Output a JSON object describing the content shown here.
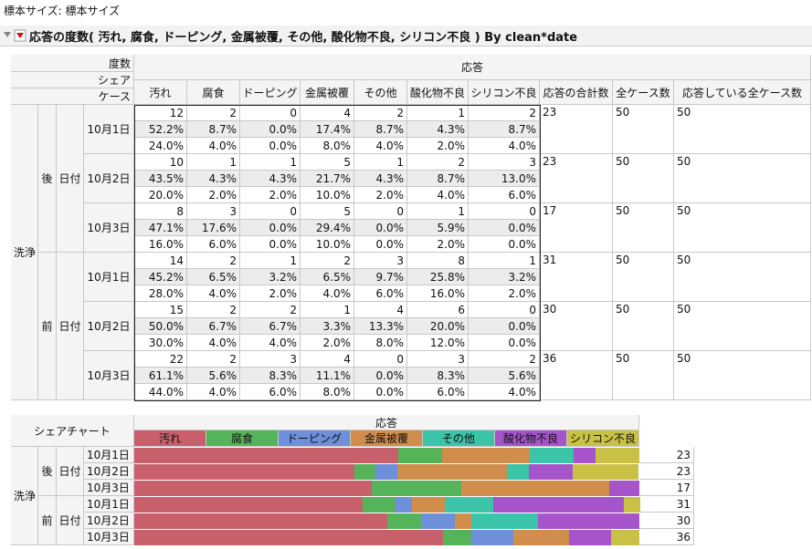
{
  "sample_size": "標本サイズ: 標本サイズ",
  "title": "応答の度数( 汚れ, 腐食, ドーピング, 金属被覆, その他, 酸化物不良, シリコン不良 ) By clean*date",
  "table": {
    "row_header_labels": [
      "度数",
      "シェア",
      "ケース"
    ],
    "response_label": "応答",
    "columns": [
      "汚れ",
      "腐食",
      "ドーピング",
      "金属被覆",
      "その他",
      "酸化物不良",
      "シリコン不良"
    ],
    "summary_columns": [
      "応答の合計数",
      "全ケース数",
      "応答している全ケース数"
    ],
    "group_label": "洗浄",
    "date_label": "日付",
    "groups": [
      {
        "name": "後",
        "rows": [
          {
            "date": "10月1日",
            "counts": [
              12,
              2,
              0,
              4,
              2,
              1,
              2
            ],
            "shares": [
              "52.2%",
              "8.7%",
              "0.0%",
              "17.4%",
              "8.7%",
              "4.3%",
              "8.7%"
            ],
            "cases": [
              "24.0%",
              "4.0%",
              "0.0%",
              "8.0%",
              "4.0%",
              "2.0%",
              "4.0%"
            ],
            "summary": [
              23,
              50,
              50
            ]
          },
          {
            "date": "10月2日",
            "counts": [
              10,
              1,
              1,
              5,
              1,
              2,
              3
            ],
            "shares": [
              "43.5%",
              "4.3%",
              "4.3%",
              "21.7%",
              "4.3%",
              "8.7%",
              "13.0%"
            ],
            "cases": [
              "20.0%",
              "2.0%",
              "2.0%",
              "10.0%",
              "2.0%",
              "4.0%",
              "6.0%"
            ],
            "summary": [
              23,
              50,
              50
            ]
          },
          {
            "date": "10月3日",
            "counts": [
              8,
              3,
              0,
              5,
              0,
              1,
              0
            ],
            "shares": [
              "47.1%",
              "17.6%",
              "0.0%",
              "29.4%",
              "0.0%",
              "5.9%",
              "0.0%"
            ],
            "cases": [
              "16.0%",
              "6.0%",
              "0.0%",
              "10.0%",
              "0.0%",
              "2.0%",
              "0.0%"
            ],
            "summary": [
              17,
              50,
              50
            ]
          }
        ]
      },
      {
        "name": "前",
        "rows": [
          {
            "date": "10月1日",
            "counts": [
              14,
              2,
              1,
              2,
              3,
              8,
              1
            ],
            "shares": [
              "45.2%",
              "6.5%",
              "3.2%",
              "6.5%",
              "9.7%",
              "25.8%",
              "3.2%"
            ],
            "cases": [
              "28.0%",
              "4.0%",
              "2.0%",
              "4.0%",
              "6.0%",
              "16.0%",
              "2.0%"
            ],
            "summary": [
              31,
              50,
              50
            ]
          },
          {
            "date": "10月2日",
            "counts": [
              15,
              2,
              2,
              1,
              4,
              6,
              0
            ],
            "shares": [
              "50.0%",
              "6.7%",
              "6.7%",
              "3.3%",
              "13.3%",
              "20.0%",
              "0.0%"
            ],
            "cases": [
              "30.0%",
              "4.0%",
              "4.0%",
              "2.0%",
              "8.0%",
              "12.0%",
              "0.0%"
            ],
            "summary": [
              30,
              50,
              50
            ]
          },
          {
            "date": "10月3日",
            "counts": [
              22,
              2,
              3,
              4,
              0,
              3,
              2
            ],
            "shares": [
              "61.1%",
              "5.6%",
              "8.3%",
              "11.1%",
              "0.0%",
              "8.3%",
              "5.6%"
            ],
            "cases": [
              "44.0%",
              "4.0%",
              "6.0%",
              "8.0%",
              "0.0%",
              "6.0%",
              "4.0%"
            ],
            "summary": [
              36,
              50,
              50
            ]
          }
        ]
      }
    ]
  },
  "chart_data": {
    "type": "bar",
    "stacked": true,
    "orientation": "horizontal",
    "title": "シェアチャート",
    "legend_title": "応答",
    "xlim": [
      0,
      100
    ],
    "series": [
      {
        "name": "汚れ",
        "color": "#c8606b",
        "values": [
          52.2,
          43.5,
          47.1,
          45.2,
          50.0,
          61.1
        ]
      },
      {
        "name": "腐食",
        "color": "#55b35a",
        "values": [
          8.7,
          4.3,
          17.6,
          6.5,
          6.7,
          5.6
        ]
      },
      {
        "name": "ドーピング",
        "color": "#6e8fd9",
        "values": [
          0.0,
          4.3,
          0.0,
          3.2,
          6.7,
          8.3
        ]
      },
      {
        "name": "金属被覆",
        "color": "#d18d4c",
        "values": [
          17.4,
          21.7,
          29.4,
          6.5,
          3.3,
          11.1
        ]
      },
      {
        "name": "その他",
        "color": "#3cc4a8",
        "values": [
          8.7,
          4.3,
          0.0,
          9.7,
          13.3,
          0.0
        ]
      },
      {
        "name": "酸化物不良",
        "color": "#a555c9",
        "values": [
          4.3,
          8.7,
          5.9,
          25.8,
          20.0,
          8.3
        ]
      },
      {
        "name": "シリコン不良",
        "color": "#c9c145",
        "values": [
          8.7,
          13.0,
          0.0,
          3.2,
          0.0,
          5.6
        ]
      }
    ]
  }
}
